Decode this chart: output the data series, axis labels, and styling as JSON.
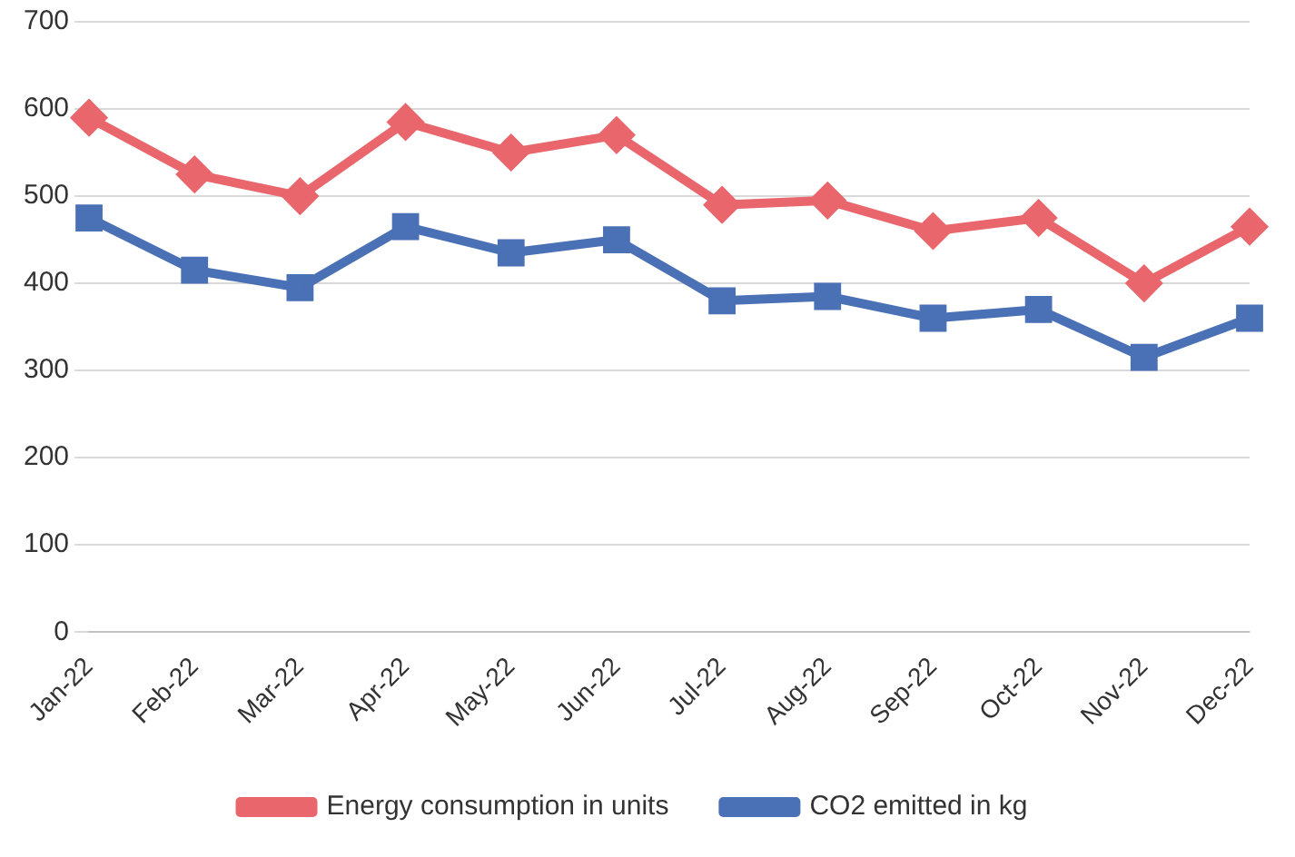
{
  "chart_data": {
    "type": "line",
    "categories": [
      "Jan-22",
      "Feb-22",
      "Mar-22",
      "Apr-22",
      "May-22",
      "Jun-22",
      "Jul-22",
      "Aug-22",
      "Sep-22",
      "Oct-22",
      "Nov-22",
      "Dec-22"
    ],
    "series": [
      {
        "name": "Energy consumption in units",
        "color": "#e8666c",
        "marker": "diamond",
        "values": [
          590,
          525,
          500,
          585,
          550,
          570,
          490,
          495,
          460,
          475,
          400,
          465
        ]
      },
      {
        "name": "CO2 emitted in kg",
        "color": "#4a70b5",
        "marker": "square",
        "values": [
          475,
          415,
          395,
          465,
          435,
          450,
          380,
          385,
          360,
          370,
          315,
          360
        ]
      }
    ],
    "ylim": [
      0,
      700
    ],
    "yticks": [
      0,
      100,
      200,
      300,
      400,
      500,
      600,
      700
    ],
    "grid": "y",
    "legend": "bottom",
    "line_style": "solid"
  }
}
